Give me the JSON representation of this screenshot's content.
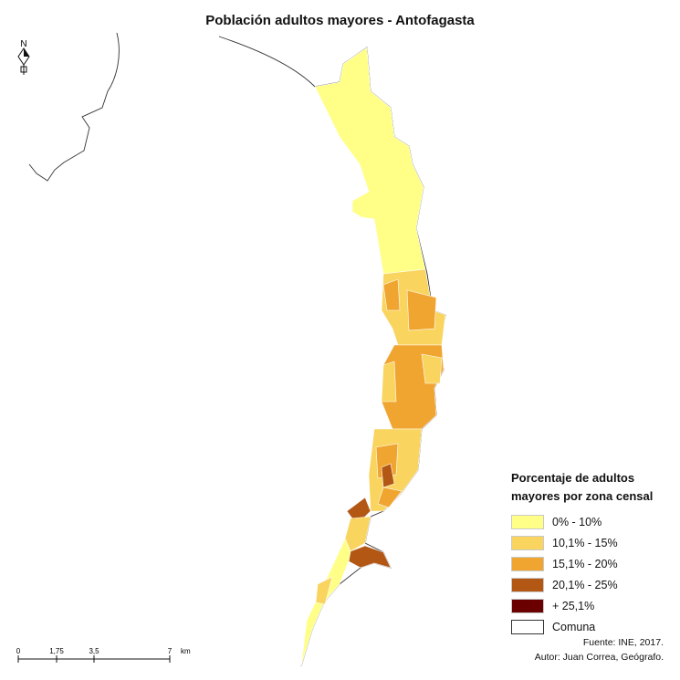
{
  "title": "Población adultos mayores - Antofagasta",
  "north_arrow": {
    "letter": "N",
    "icon": "north-arrow-icon"
  },
  "legend": {
    "title_line1": "Porcentaje de adultos",
    "title_line2": "mayores por zona censal",
    "items": [
      {
        "label": "0% - 10%",
        "color": "#ffff88"
      },
      {
        "label": "10,1% - 15%",
        "color": "#f9d45e"
      },
      {
        "label": "15,1% - 20%",
        "color": "#f0a531"
      },
      {
        "label": "20,1% - 25%",
        "color": "#b25714"
      },
      {
        "label": "+ 25,1%",
        "color": "#6b0000"
      },
      {
        "label": "Comuna",
        "color": "#ffffff"
      }
    ]
  },
  "scale_bar": {
    "ticks": [
      "0",
      "1,75",
      "3,5",
      "7"
    ],
    "unit": "km"
  },
  "credits": {
    "source": "Fuente: INE, 2017.",
    "author": "Autor: Juan Correa, Geógrafo."
  },
  "colors": {
    "coastline": "#222222",
    "zone_border": "#ffffff"
  }
}
